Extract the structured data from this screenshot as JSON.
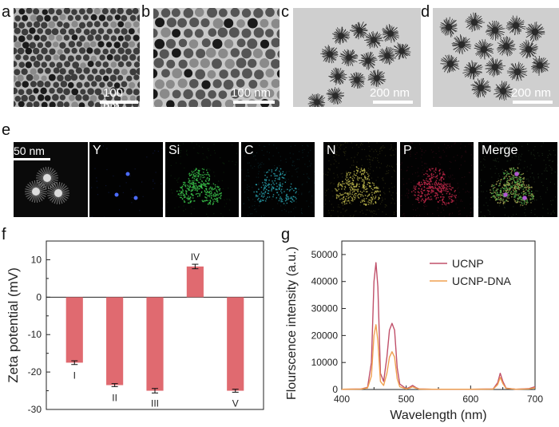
{
  "panels": {
    "a": {
      "label": "a",
      "scale": "100 nm"
    },
    "b": {
      "label": "b",
      "scale": "100 nm"
    },
    "c": {
      "label": "c",
      "scale": "200 nm"
    },
    "d": {
      "label": "d",
      "scale": "200 nm"
    },
    "e": {
      "label": "e",
      "scale": "50 nm"
    },
    "f": {
      "label": "f"
    },
    "g": {
      "label": "g"
    }
  },
  "mapping_labels": [
    "Y",
    "Si",
    "C",
    "N",
    "P",
    "Merge"
  ],
  "chart_data": [
    {
      "type": "bar",
      "categories": [
        "I",
        "II",
        "III",
        "IV",
        "V"
      ],
      "values": [
        -17.5,
        -23.5,
        -25.0,
        8.2,
        -25.0
      ],
      "errors": [
        0.5,
        0.4,
        0.6,
        0.6,
        0.4
      ],
      "ylabel": "Zeta potential (mV)",
      "xlabel": "",
      "ylim": [
        -30,
        15
      ],
      "yticks": [
        "10",
        "0",
        "-10",
        "-20",
        "-30"
      ],
      "color": "#e06a70"
    },
    {
      "type": "line",
      "xlabel": "Wavelength (nm)",
      "ylabel": "Flourscence intensity (a.u.)",
      "xlim": [
        400,
        700
      ],
      "ylim": [
        0,
        55000
      ],
      "xticks": [
        "400",
        "500",
        "600",
        "700"
      ],
      "yticks": [
        "0",
        "10000",
        "20000",
        "30000",
        "40000",
        "50000"
      ],
      "legend_position": "top-right",
      "series": [
        {
          "name": "UCNP",
          "color": "#c0506a",
          "x": [
            400,
            430,
            440,
            446,
            450,
            453,
            456,
            460,
            465,
            470,
            474,
            478,
            482,
            486,
            490,
            500,
            505,
            510,
            515,
            520,
            540,
            600,
            635,
            642,
            646,
            650,
            655,
            670,
            690,
            700
          ],
          "y": [
            100,
            200,
            800,
            10000,
            40000,
            47000,
            38000,
            6000,
            3000,
            12000,
            22000,
            24500,
            22000,
            8000,
            2000,
            300,
            800,
            1500,
            700,
            200,
            100,
            100,
            200,
            2500,
            6000,
            3000,
            500,
            100,
            300,
            1000
          ]
        },
        {
          "name": "UCNP-DNA",
          "color": "#f0a050",
          "x": [
            400,
            430,
            440,
            446,
            450,
            453,
            456,
            460,
            465,
            470,
            474,
            478,
            482,
            486,
            490,
            500,
            505,
            510,
            515,
            520,
            540,
            600,
            635,
            642,
            646,
            650,
            655,
            670,
            690,
            700
          ],
          "y": [
            100,
            150,
            600,
            5000,
            20000,
            24000,
            18000,
            3000,
            1500,
            6000,
            12000,
            14000,
            12000,
            4000,
            1000,
            200,
            500,
            1000,
            500,
            150,
            100,
            100,
            150,
            1800,
            4500,
            2200,
            400,
            100,
            200,
            600
          ]
        }
      ]
    }
  ]
}
